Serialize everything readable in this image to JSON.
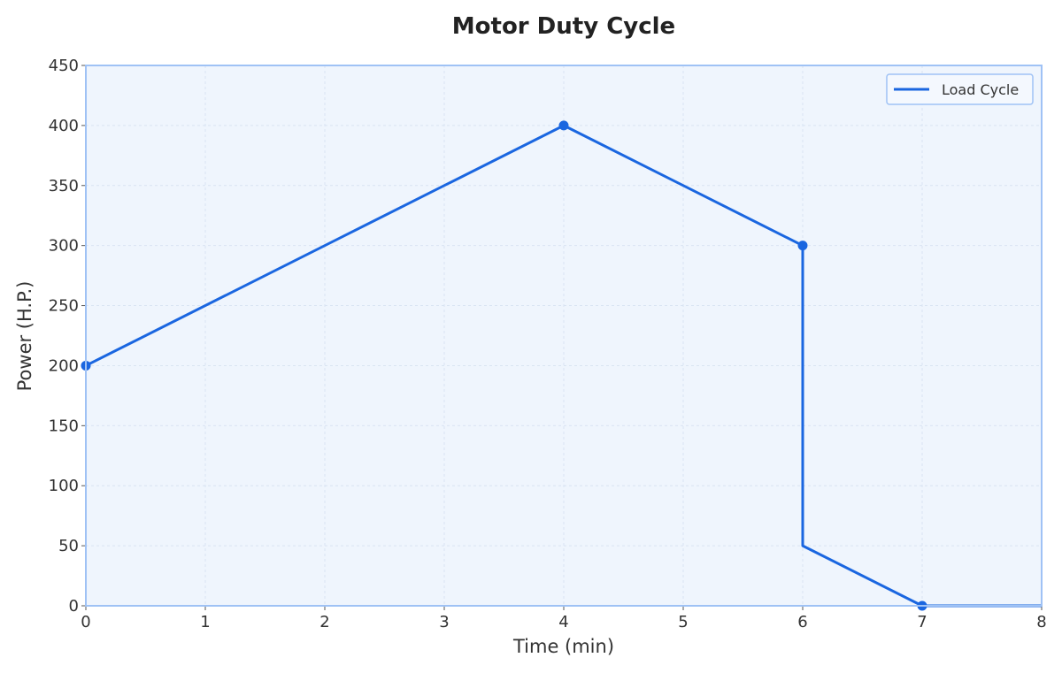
{
  "chart_data": {
    "type": "line",
    "title": "Motor Duty Cycle",
    "xlabel": "Time (min)",
    "ylabel": "Power (H.P.)",
    "xlim": [
      0,
      8
    ],
    "ylim": [
      0,
      450
    ],
    "xticks": [
      0,
      1,
      2,
      3,
      4,
      5,
      6,
      7,
      8
    ],
    "yticks": [
      0,
      50,
      100,
      150,
      200,
      250,
      300,
      350,
      400,
      450
    ],
    "grid": true,
    "legend_position": "top-right",
    "series": [
      {
        "name": "Load Cycle",
        "color": "#1a66e0",
        "x": [
          0,
          4,
          6,
          6,
          7,
          8
        ],
        "y": [
          200,
          400,
          300,
          50,
          0,
          0
        ],
        "markers": [
          {
            "x": 0,
            "y": 200
          },
          {
            "x": 4,
            "y": 400
          },
          {
            "x": 6,
            "y": 300
          },
          {
            "x": 7,
            "y": 0
          }
        ]
      }
    ],
    "colors": {
      "plot_background": "#eff5fd",
      "frame": "#9fc2f5",
      "grid": "#d9e4f2"
    }
  }
}
